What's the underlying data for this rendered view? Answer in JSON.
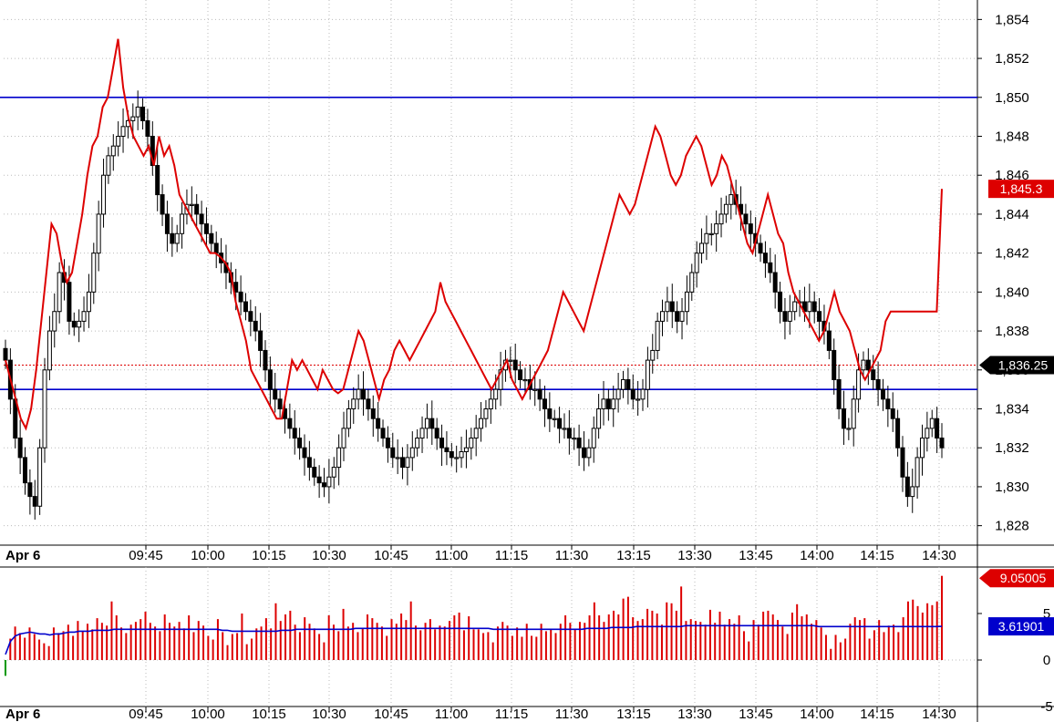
{
  "chart_data": [
    {
      "type": "candlestick",
      "date_label": "Apr 6",
      "x_tick_labels": [
        "09:45",
        "10:00",
        "10:15",
        "10:30",
        "10:45",
        "11:00",
        "11:15",
        "11:30",
        "13:15",
        "13:30",
        "13:45",
        "14:00",
        "14:15",
        "14:30"
      ],
      "y_tick_labels": [
        "1,828",
        "1,830",
        "1,832",
        "1,834",
        "1,836",
        "1,838",
        "1,840",
        "1,842",
        "1,844",
        "1,846",
        "1,848",
        "1,850",
        "1,852",
        "1,854"
      ],
      "ylim": [
        1827,
        1855
      ],
      "grid": true,
      "horizontal_levels": [
        1850,
        1835.0
      ],
      "reference_level": 1836.25,
      "last_price_label": "1,836.25",
      "overlay_last_label": "1,845.3",
      "colors": {
        "price": "#000000",
        "overlay": "#dd0000",
        "levels": "#0000cc",
        "reference": "#dd0000",
        "grid": "#cccccc"
      },
      "series": [
        {
          "kind": "candles",
          "values": [
            1836.5,
            1834.5,
            1832.5,
            1831.5,
            1830.2,
            1829.5,
            1829.0,
            1832.0,
            1836.0,
            1838.0,
            1839.0,
            1841.0,
            1840.5,
            1838.5,
            1838.2,
            1838.5,
            1839.0,
            1840.0,
            1842.0,
            1844.0,
            1846.0,
            1847.0,
            1847.5,
            1848.0,
            1848.5,
            1848.8,
            1849.0,
            1849.5,
            1848.8,
            1848.0,
            1846.5,
            1845.0,
            1844.0,
            1843.0,
            1842.5,
            1843.0,
            1844.0,
            1844.5,
            1844.5,
            1844.0,
            1843.5,
            1843.0,
            1842.5,
            1842.0,
            1841.5,
            1841.0,
            1840.5,
            1840.0,
            1839.5,
            1839.0,
            1838.5,
            1838.0,
            1837.0,
            1836.0,
            1835.0,
            1834.5,
            1834.0,
            1833.5,
            1833.0,
            1832.5,
            1832.0,
            1831.5,
            1831.0,
            1830.5,
            1830.2,
            1830.0,
            1830.5,
            1831.0,
            1832.0,
            1833.0,
            1834.0,
            1834.5,
            1835.0,
            1834.5,
            1834.0,
            1833.5,
            1833.0,
            1832.5,
            1832.0,
            1831.5,
            1831.5,
            1831.0,
            1831.5,
            1832.0,
            1832.5,
            1833.0,
            1833.5,
            1833.0,
            1832.5,
            1832.0,
            1831.8,
            1831.5,
            1831.5,
            1831.8,
            1832.0,
            1832.5,
            1833.0,
            1833.5,
            1834.0,
            1834.5,
            1835.0,
            1836.0,
            1836.5,
            1836.5,
            1836.0,
            1835.5,
            1835.5,
            1835.0,
            1835.0,
            1834.5,
            1834.0,
            1833.5,
            1833.5,
            1833.0,
            1833.0,
            1832.5,
            1832.5,
            1832.0,
            1831.5,
            1832.0,
            1833.0,
            1834.0,
            1834.5,
            1834.0,
            1834.5,
            1835.0,
            1835.5,
            1835.0,
            1834.5,
            1834.5,
            1835.0,
            1836.5,
            1837.0,
            1838.5,
            1839.0,
            1839.5,
            1839.0,
            1838.5,
            1839.0,
            1840.0,
            1841.0,
            1842.0,
            1842.5,
            1843.0,
            1843.0,
            1843.5,
            1844.0,
            1844.5,
            1845.0,
            1844.5,
            1844.0,
            1843.5,
            1843.0,
            1842.5,
            1842.0,
            1841.5,
            1841.0,
            1840.0,
            1839.0,
            1838.5,
            1839.0,
            1839.5,
            1839.5,
            1839.0,
            1839.5,
            1839.0,
            1838.5,
            1838.0,
            1837.0,
            1835.5,
            1834.0,
            1833.0,
            1833.0,
            1834.5,
            1836.0,
            1836.5,
            1836.0,
            1835.5,
            1835.0,
            1834.5,
            1834.0,
            1833.5,
            1832.0,
            1830.5,
            1829.5,
            1830.0,
            1831.5,
            1832.5,
            1833.0,
            1833.5,
            1832.5,
            1832.0
          ]
        },
        {
          "kind": "line",
          "values": [
            1836.5,
            1835.5,
            1834.5,
            1833.5,
            1833.0,
            1834.0,
            1836.0,
            1838.5,
            1841.0,
            1843.5,
            1843.0,
            1841.5,
            1840.5,
            1841.0,
            1842.5,
            1844.0,
            1846.0,
            1847.5,
            1848.0,
            1849.5,
            1850.0,
            1851.5,
            1853.0,
            1850.5,
            1849.0,
            1848.0,
            1847.5,
            1847.0,
            1847.5,
            1846.5,
            1848.0,
            1847.0,
            1847.5,
            1846.5,
            1845.0,
            1844.5,
            1844.0,
            1843.5,
            1843.0,
            1842.5,
            1842.0,
            1842.0,
            1841.8,
            1841.5,
            1841.0,
            1839.5,
            1838.5,
            1837.5,
            1836.0,
            1835.5,
            1835.0,
            1834.5,
            1834.0,
            1833.5,
            1833.5,
            1835.0,
            1836.5,
            1836.0,
            1836.5,
            1836.0,
            1835.5,
            1835.0,
            1836.0,
            1835.5,
            1835.0,
            1834.8,
            1835.0,
            1836.0,
            1837.0,
            1838.0,
            1837.5,
            1836.5,
            1835.5,
            1834.5,
            1835.5,
            1836.0,
            1837.0,
            1837.5,
            1837.0,
            1836.5,
            1837.0,
            1837.5,
            1838.0,
            1838.5,
            1839.0,
            1840.5,
            1839.5,
            1839.0,
            1838.5,
            1838.0,
            1837.5,
            1837.0,
            1836.5,
            1836.0,
            1835.5,
            1835.0,
            1835.5,
            1836.0,
            1836.5,
            1835.5,
            1835.0,
            1834.5,
            1835.0,
            1835.5,
            1836.0,
            1836.5,
            1837.0,
            1838.0,
            1839.0,
            1840.0,
            1839.5,
            1839.0,
            1838.5,
            1838.0,
            1839.0,
            1840.0,
            1841.0,
            1842.0,
            1843.0,
            1844.0,
            1845.0,
            1844.5,
            1844.0,
            1844.5,
            1845.5,
            1846.5,
            1847.5,
            1848.5,
            1848.0,
            1847.0,
            1846.0,
            1845.5,
            1846.0,
            1847.0,
            1847.5,
            1848.0,
            1847.5,
            1846.5,
            1845.5,
            1846.0,
            1847.0,
            1846.5,
            1845.5,
            1844.5,
            1843.5,
            1842.5,
            1842.0,
            1843.0,
            1844.0,
            1845.0,
            1844.0,
            1843.0,
            1842.5,
            1841.0,
            1840.0,
            1839.5,
            1839.0,
            1838.5,
            1838.0,
            1837.5,
            1838.0,
            1839.0,
            1840.0,
            1839.0,
            1838.5,
            1838.0,
            1837.0,
            1836.0,
            1835.5,
            1836.0,
            1836.5,
            1837.0,
            1838.5,
            1839.0,
            1839.0,
            1839.0,
            1839.0,
            1839.0,
            1839.0,
            1839.0,
            1839.0,
            1839.0,
            1839.0,
            1845.3
          ]
        }
      ]
    },
    {
      "type": "bar",
      "date_label": "Apr 6",
      "x_tick_labels": [
        "09:45",
        "10:00",
        "10:15",
        "10:30",
        "10:45",
        "11:00",
        "11:15",
        "11:30",
        "13:15",
        "13:30",
        "13:45",
        "14:00",
        "14:15",
        "14:30"
      ],
      "y_tick_labels": [
        "-5",
        "0",
        "5"
      ],
      "ylim": [
        -5,
        10
      ],
      "grid": true,
      "last_value_label": "9.05005",
      "avg_value_label": "3.61901",
      "colors": {
        "bars": "#dd0000",
        "average": "#0000cc",
        "first_bar": "#009900"
      },
      "series": [
        {
          "kind": "bars",
          "values": [
            -1.7,
            2.3,
            3.6,
            2.9,
            2.4,
            3.5,
            2.8,
            2.2,
            1.8,
            1.5,
            3.5,
            2.9,
            3.1,
            3.8,
            2.6,
            4.2,
            3.1,
            3.9,
            3.3,
            4.5,
            4.0,
            3.7,
            6.3,
            4.8,
            3.5,
            2.9,
            3.8,
            4.1,
            4.4,
            5.2,
            4.0,
            3.6,
            3.1,
            4.9,
            4.0,
            3.6,
            4.1,
            3.4,
            4.8,
            3.0,
            4.2,
            3.7,
            2.6,
            2.2,
            4.4,
            3.0,
            1.6,
            2.8,
            2.9,
            5.0,
            1.7,
            2.3,
            3.4,
            3.6,
            4.5,
            3.4,
            6.1,
            4.2,
            4.9,
            5.3,
            3.8,
            3.0,
            4.6,
            3.9,
            3.4,
            2.8,
            1.9,
            4.8,
            3.8,
            3.1,
            5.5,
            3.6,
            4.0,
            3.0,
            3.4,
            4.9,
            4.5,
            4.0,
            3.6,
            2.6,
            4.4,
            3.9,
            5.0,
            4.3,
            6.3,
            3.7,
            3.2,
            4.0,
            4.4,
            3.3,
            3.7,
            3.6,
            4.2,
            4.8,
            5.1,
            3.2,
            4.7,
            3.3,
            3.3,
            2.9,
            3.0,
            1.9,
            3.6,
            4.1,
            3.7,
            2.6,
            3.5,
            2.5,
            3.9,
            2.6,
            2.5,
            3.9,
            3.1,
            3.3,
            2.9,
            3.9,
            4.8,
            4.0,
            3.3,
            4.1,
            4.0,
            4.8,
            6.2,
            4.8,
            4.1,
            4.9,
            5.3,
            4.9,
            6.6,
            6.8,
            4.6,
            4.2,
            4.4,
            5.5,
            5.3,
            5.0,
            3.8,
            6.2,
            6.1,
            5.3,
            7.9,
            4.2,
            4.4,
            4.2,
            4.1,
            3.8,
            5.4,
            4.0,
            5.2,
            3.8,
            4.4,
            3.9,
            4.8,
            3.1,
            2.0,
            4.3,
            3.8,
            5.2,
            5.3,
            4.9,
            4.3,
            3.6,
            2.8,
            5.1,
            6.0,
            4.7,
            4.9,
            3.9,
            4.3,
            3.5,
            2.7,
            1.2,
            2.7,
            1.9,
            2.3,
            3.9,
            4.6,
            4.3,
            4.5,
            2.3,
            3.2,
            4.3,
            3.0,
            3.7,
            3.8,
            3.0,
            4.6,
            6.3,
            6.5,
            5.8,
            5.1,
            6.1,
            5.9,
            6.3,
            9.05005
          ],
          "average": [
            0.6,
            2.0,
            2.6,
            2.8,
            2.9,
            3.0,
            2.9,
            2.8,
            2.8,
            2.7,
            2.8,
            2.8,
            2.9,
            3.0,
            3.0,
            3.1,
            3.1,
            3.1,
            3.2,
            3.2,
            3.2,
            3.2,
            3.3,
            3.3,
            3.3,
            3.3,
            3.3,
            3.3,
            3.3,
            3.3,
            3.3,
            3.3,
            3.3,
            3.3,
            3.3,
            3.3,
            3.3,
            3.3,
            3.3,
            3.3,
            3.3,
            3.3,
            3.3,
            3.3,
            3.2,
            3.2,
            3.1,
            3.1,
            3.1,
            3.1,
            3.1,
            3.1,
            3.1,
            3.1,
            3.1,
            3.1,
            3.2,
            3.2,
            3.2,
            3.3,
            3.3,
            3.3,
            3.3,
            3.3,
            3.3,
            3.3,
            3.3,
            3.3,
            3.3,
            3.3,
            3.3,
            3.4,
            3.4,
            3.4,
            3.4,
            3.4,
            3.4,
            3.4,
            3.4,
            3.4,
            3.4,
            3.4,
            3.4,
            3.4,
            3.4,
            3.4,
            3.4,
            3.4,
            3.4,
            3.4,
            3.4,
            3.4,
            3.4,
            3.4,
            3.4,
            3.4,
            3.4,
            3.4,
            3.4,
            3.3,
            3.3,
            3.3,
            3.3,
            3.3,
            3.3,
            3.3,
            3.3,
            3.3,
            3.3,
            3.3,
            3.3,
            3.3,
            3.3,
            3.3,
            3.3,
            3.3,
            3.3,
            3.3,
            3.4,
            3.4,
            3.4,
            3.4,
            3.4,
            3.5,
            3.5,
            3.5,
            3.5,
            3.5,
            3.6,
            3.6,
            3.6,
            3.6,
            3.6,
            3.6,
            3.6,
            3.6,
            3.6,
            3.6,
            3.7,
            3.7,
            3.7,
            3.7,
            3.7,
            3.7,
            3.7,
            3.7,
            3.7,
            3.7,
            3.7,
            3.7,
            3.7,
            3.7,
            3.7,
            3.7,
            3.7,
            3.7,
            3.7,
            3.7,
            3.7,
            3.7,
            3.7,
            3.7,
            3.7,
            3.7,
            3.7,
            3.6,
            3.6,
            3.6,
            3.6,
            3.6,
            3.6,
            3.6,
            3.6,
            3.6,
            3.6,
            3.6,
            3.6,
            3.6,
            3.6,
            3.6,
            3.6,
            3.6,
            3.6,
            3.6,
            3.6,
            3.6,
            3.6,
            3.6,
            3.6,
            3.6,
            3.61901
          ]
        }
      ]
    }
  ]
}
